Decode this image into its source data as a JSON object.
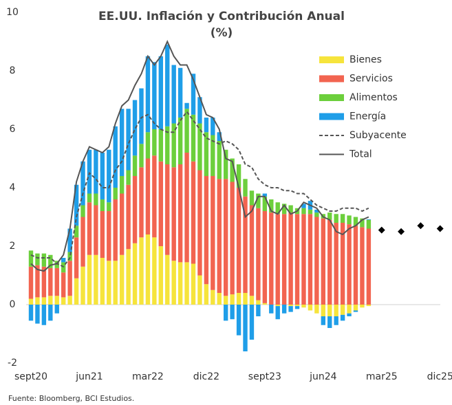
{
  "chart_data": {
    "type": "bar",
    "title": [
      "EE.UU. Inflación y Contribución Anual",
      "(%)"
    ],
    "source": "Fuente: Bloomberg, BCI Estudios.",
    "categories": [
      "sept20",
      null,
      null,
      null,
      null,
      null,
      null,
      null,
      null,
      "jun21",
      null,
      null,
      null,
      null,
      null,
      null,
      null,
      null,
      "mar22",
      null,
      null,
      null,
      null,
      null,
      null,
      null,
      null,
      "dic22",
      null,
      null,
      null,
      null,
      null,
      null,
      null,
      null,
      "sept23",
      null,
      null,
      null,
      null,
      null,
      null,
      null,
      null,
      "jun24",
      null,
      null,
      null,
      null,
      null,
      null,
      null,
      null,
      "mar25",
      null,
      null,
      null,
      null,
      null,
      null,
      null,
      null,
      "dic25"
    ],
    "ylim": [
      -2,
      10
    ],
    "yticks": [
      -2,
      0,
      2,
      4,
      6,
      8,
      10
    ],
    "stacked": true,
    "series": [
      {
        "name": "Bienes",
        "color": "#f6e43c",
        "values": [
          0.2,
          0.25,
          0.25,
          0.3,
          0.3,
          0.25,
          0.3,
          0.9,
          1.3,
          1.7,
          1.7,
          1.6,
          1.5,
          1.5,
          1.7,
          1.9,
          2.1,
          2.3,
          2.4,
          2.3,
          2.0,
          1.7,
          1.5,
          1.45,
          1.45,
          1.4,
          1.0,
          0.7,
          0.5,
          0.4,
          0.3,
          0.35,
          0.4,
          0.4,
          0.3,
          0.15,
          0.05,
          0,
          -0.05,
          0,
          -0.05,
          -0.05,
          -0.1,
          -0.2,
          -0.3,
          -0.4,
          -0.4,
          -0.4,
          -0.35,
          -0.3,
          -0.2,
          -0.1,
          -0.05,
          null,
          null,
          null,
          null,
          null,
          null,
          null,
          null,
          null,
          null,
          null
        ]
      },
      {
        "name": "Servicios",
        "color": "#f26450",
        "values": [
          1.1,
          1.1,
          1.05,
          0.95,
          0.95,
          0.85,
          1.2,
          1.4,
          1.7,
          1.8,
          1.7,
          1.6,
          1.7,
          2.1,
          2.1,
          2.2,
          2.3,
          2.4,
          2.6,
          2.8,
          2.9,
          3.1,
          3.2,
          3.35,
          3.75,
          3.5,
          3.6,
          3.7,
          3.9,
          3.9,
          4.0,
          3.85,
          3.6,
          3.3,
          3.1,
          3.15,
          3.15,
          3.15,
          3.1,
          3.1,
          3.15,
          3.1,
          3.1,
          3.1,
          3.0,
          2.95,
          2.9,
          2.8,
          2.8,
          2.75,
          2.7,
          2.65,
          2.6,
          null,
          null,
          null,
          null,
          null,
          null,
          null,
          null,
          null,
          null,
          null
        ]
      },
      {
        "name": "Alimentos",
        "color": "#6ccf3c",
        "values": [
          0.55,
          0.4,
          0.45,
          0.45,
          0.25,
          0.35,
          0.3,
          0.4,
          0.4,
          0.3,
          0.4,
          0.4,
          0.3,
          0.4,
          0.6,
          0.5,
          0.7,
          0.8,
          0.9,
          0.9,
          1.1,
          1.3,
          1.5,
          1.6,
          1.5,
          1.6,
          1.6,
          1.5,
          1.4,
          1.3,
          1.0,
          0.8,
          0.8,
          0.6,
          0.5,
          0.5,
          0.5,
          0.45,
          0.4,
          0.35,
          0.25,
          0.2,
          0.2,
          0.15,
          0.15,
          0.15,
          0.25,
          0.3,
          0.3,
          0.3,
          0.3,
          0.3,
          0.3,
          null,
          null,
          null,
          null,
          null,
          null,
          null,
          null,
          null,
          null,
          null
        ]
      },
      {
        "name": "Energía",
        "color": "#1f9ee8",
        "values": [
          -0.55,
          -0.65,
          -0.7,
          -0.55,
          -0.3,
          0.15,
          0.8,
          1.4,
          1.5,
          1.5,
          1.5,
          1.6,
          1.8,
          2.1,
          2.3,
          2.1,
          1.9,
          1.9,
          2.6,
          2.3,
          2.5,
          2.8,
          2.0,
          1.7,
          0.2,
          1.4,
          0.9,
          0.5,
          0.6,
          0.3,
          -0.55,
          -0.5,
          -1.05,
          -1.6,
          -1.2,
          -0.4,
          0.1,
          -0.3,
          -0.45,
          -0.3,
          -0.2,
          -0.1,
          0.15,
          0.3,
          0.1,
          -0.3,
          -0.4,
          -0.3,
          -0.2,
          -0.1,
          -0.05,
          0,
          0.02,
          null,
          null,
          null,
          null,
          null,
          null,
          null,
          null,
          null,
          null,
          null
        ]
      },
      {
        "name": "Subyacente",
        "type": "line",
        "dash": true,
        "color": "#555555",
        "values": [
          1.7,
          1.6,
          1.6,
          1.6,
          1.4,
          1.3,
          1.6,
          3.0,
          3.8,
          4.5,
          4.3,
          4.0,
          4.0,
          4.6,
          4.9,
          5.5,
          6.0,
          6.4,
          6.5,
          6.2,
          6.0,
          5.9,
          5.9,
          6.3,
          6.6,
          6.3,
          6.0,
          5.7,
          5.6,
          5.5,
          5.6,
          5.5,
          5.3,
          4.8,
          4.7,
          4.3,
          4.1,
          4.0,
          4.0,
          3.9,
          3.9,
          3.8,
          3.8,
          3.6,
          3.4,
          3.3,
          3.2,
          3.2,
          3.3,
          3.3,
          3.3,
          3.2,
          3.3,
          null,
          null,
          null,
          null,
          null,
          null,
          null,
          null,
          null,
          null,
          null
        ]
      },
      {
        "name": "Total",
        "type": "line",
        "color": "#555555",
        "values": [
          1.4,
          1.2,
          1.15,
          1.35,
          1.4,
          1.7,
          2.6,
          4.2,
          4.9,
          5.4,
          5.3,
          5.2,
          5.4,
          6.2,
          6.8,
          7.0,
          7.5,
          7.9,
          8.5,
          8.2,
          8.5,
          9.0,
          8.5,
          8.2,
          8.2,
          7.7,
          7.1,
          6.5,
          6.4,
          6.0,
          5.0,
          4.9,
          4.0,
          3.0,
          3.2,
          3.7,
          3.7,
          3.2,
          3.1,
          3.4,
          3.1,
          3.2,
          3.5,
          3.4,
          3.3,
          3.0,
          2.9,
          2.5,
          2.4,
          2.6,
          2.7,
          2.9,
          3.0,
          null,
          null,
          null,
          null,
          null,
          null,
          null,
          null,
          null,
          null,
          null
        ]
      }
    ],
    "forecast": {
      "color": "#000000",
      "values": [
        null,
        null,
        null,
        null,
        null,
        null,
        null,
        null,
        null,
        null,
        null,
        null,
        null,
        null,
        null,
        null,
        null,
        null,
        null,
        null,
        null,
        null,
        null,
        null,
        null,
        null,
        null,
        null,
        null,
        null,
        null,
        null,
        null,
        null,
        null,
        null,
        null,
        null,
        null,
        null,
        null,
        null,
        null,
        null,
        null,
        null,
        null,
        null,
        null,
        null,
        null,
        null,
        null,
        null,
        2.55,
        null,
        null,
        2.5,
        null,
        null,
        2.7,
        null,
        null,
        2.6
      ]
    }
  }
}
